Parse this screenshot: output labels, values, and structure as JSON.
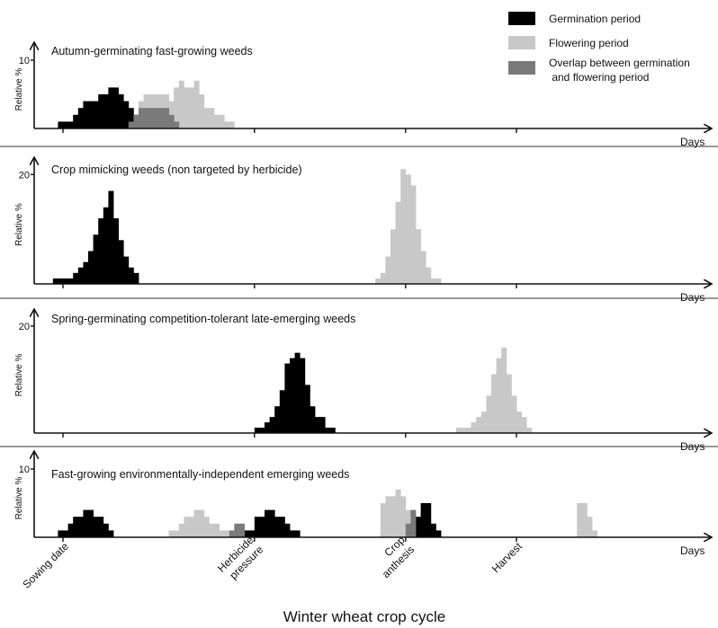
{
  "colors": {
    "germination": "#000000",
    "flowering": "#c8c8c8",
    "overlap": "#7a7a7a"
  },
  "legend": [
    {
      "label": "Germination period",
      "color": "#000000"
    },
    {
      "label": "Flowering period",
      "color": "#c8c8c8"
    },
    {
      "label": "Overlap between germination\n and flowering period",
      "color": "#7a7a7a"
    }
  ],
  "chart_data": {
    "type": "bar",
    "xlabel": "Winter  wheat crop cycle",
    "x_axis_label": "Days",
    "y_axis_label": "Relative %",
    "x_categories": [
      "Sowing date",
      "Herbicide pressure",
      "Crop anthesis",
      "Harvest"
    ],
    "x_category_positions": [
      0,
      38,
      68,
      90
    ],
    "x_range": [
      -3,
      106
    ],
    "panels": [
      {
        "title": "Autumn-germinating fast-growing weeds",
        "ylim": [
          0,
          12.5
        ],
        "ytick": 10,
        "series": [
          {
            "name": "Germination period",
            "bins": [
              [
                -1,
                1
              ],
              [
                0,
                1
              ],
              [
                1,
                1
              ],
              [
                2,
                2
              ],
              [
                3,
                3
              ],
              [
                4,
                4
              ],
              [
                5,
                4
              ],
              [
                6,
                4
              ],
              [
                7,
                5
              ],
              [
                8,
                5
              ],
              [
                9,
                6
              ],
              [
                10,
                6
              ],
              [
                11,
                5
              ],
              [
                12,
                4
              ],
              [
                13,
                3
              ],
              [
                14,
                2
              ]
            ]
          },
          {
            "name": "Flowering period",
            "bins": [
              [
                15,
                4
              ],
              [
                16,
                5
              ],
              [
                17,
                5
              ],
              [
                18,
                5
              ],
              [
                19,
                5
              ],
              [
                20,
                5
              ],
              [
                21,
                4
              ],
              [
                22,
                6
              ],
              [
                23,
                7
              ],
              [
                24,
                6
              ],
              [
                25,
                6
              ],
              [
                26,
                7
              ],
              [
                27,
                5
              ],
              [
                28,
                3
              ],
              [
                29,
                3
              ],
              [
                30,
                2
              ],
              [
                31,
                2
              ],
              [
                32,
                1
              ],
              [
                33,
                1
              ]
            ]
          },
          {
            "name": "Overlap between germination and flowering period",
            "bins": [
              [
                13,
                1
              ],
              [
                14,
                2
              ],
              [
                15,
                3
              ],
              [
                16,
                3
              ],
              [
                17,
                3
              ],
              [
                18,
                3
              ],
              [
                19,
                3
              ],
              [
                20,
                3
              ],
              [
                21,
                2
              ],
              [
                22,
                1
              ]
            ]
          }
        ]
      },
      {
        "title": "Crop mimicking weeds (non targeted by herbicide)",
        "ylim": [
          0,
          23
        ],
        "ytick": 20,
        "series": [
          {
            "name": "Germination period",
            "bins": [
              [
                -2,
                1
              ],
              [
                -1,
                1
              ],
              [
                0,
                1
              ],
              [
                1,
                1
              ],
              [
                2,
                2
              ],
              [
                3,
                3
              ],
              [
                4,
                4
              ],
              [
                5,
                6
              ],
              [
                6,
                9
              ],
              [
                7,
                12
              ],
              [
                8,
                14
              ],
              [
                9,
                17
              ],
              [
                10,
                12
              ],
              [
                11,
                8
              ],
              [
                12,
                5
              ],
              [
                13,
                3
              ],
              [
                14,
                2
              ]
            ]
          },
          {
            "name": "Flowering period",
            "bins": [
              [
                62,
                1
              ],
              [
                63,
                2
              ],
              [
                64,
                5
              ],
              [
                65,
                10
              ],
              [
                66,
                15
              ],
              [
                67,
                21
              ],
              [
                68,
                20
              ],
              [
                69,
                18
              ],
              [
                70,
                10
              ],
              [
                71,
                6
              ],
              [
                72,
                3
              ],
              [
                73,
                1
              ],
              [
                74,
                1
              ]
            ]
          }
        ]
      },
      {
        "title": "Spring-germinating competition-tolerant late-emerging weeds",
        "ylim": [
          0,
          23
        ],
        "ytick": 20,
        "series": [
          {
            "name": "Germination period",
            "bins": [
              [
                38,
                1
              ],
              [
                39,
                1
              ],
              [
                40,
                2
              ],
              [
                41,
                3
              ],
              [
                42,
                5
              ],
              [
                43,
                8
              ],
              [
                44,
                13
              ],
              [
                45,
                14
              ],
              [
                46,
                15
              ],
              [
                47,
                14
              ],
              [
                48,
                9
              ],
              [
                49,
                5
              ],
              [
                50,
                3
              ],
              [
                51,
                3
              ],
              [
                52,
                1
              ],
              [
                53,
                1
              ]
            ]
          },
          {
            "name": "Flowering period",
            "bins": [
              [
                78,
                1
              ],
              [
                79,
                1
              ],
              [
                80,
                1
              ],
              [
                81,
                2
              ],
              [
                82,
                3
              ],
              [
                83,
                4
              ],
              [
                84,
                7
              ],
              [
                85,
                11
              ],
              [
                86,
                14
              ],
              [
                87,
                16
              ],
              [
                88,
                11
              ],
              [
                89,
                7
              ],
              [
                90,
                4
              ],
              [
                91,
                3
              ],
              [
                92,
                1
              ]
            ]
          }
        ]
      },
      {
        "title": "Fast-growing environmentally-independent emerging weeds",
        "ylim": [
          0,
          12.5
        ],
        "ytick": 10,
        "series": [
          {
            "name": "Germination period",
            "bins": [
              [
                -1,
                1
              ],
              [
                0,
                1
              ],
              [
                1,
                2
              ],
              [
                2,
                3
              ],
              [
                3,
                3
              ],
              [
                4,
                4
              ],
              [
                5,
                4
              ],
              [
                6,
                3
              ],
              [
                7,
                3
              ],
              [
                8,
                2
              ],
              [
                9,
                1
              ],
              [
                36,
                1
              ],
              [
                37,
                1
              ],
              [
                38,
                3
              ],
              [
                39,
                3
              ],
              [
                40,
                4
              ],
              [
                41,
                4
              ],
              [
                42,
                3
              ],
              [
                43,
                3
              ],
              [
                44,
                2
              ],
              [
                45,
                1
              ],
              [
                46,
                1
              ],
              [
                70,
                3
              ],
              [
                71,
                5
              ],
              [
                72,
                5
              ],
              [
                73,
                2
              ],
              [
                74,
                1
              ]
            ]
          },
          {
            "name": "Flowering period",
            "bins": [
              [
                21,
                1
              ],
              [
                22,
                1
              ],
              [
                23,
                2
              ],
              [
                24,
                3
              ],
              [
                25,
                3
              ],
              [
                26,
                4
              ],
              [
                27,
                4
              ],
              [
                28,
                3
              ],
              [
                29,
                2
              ],
              [
                30,
                2
              ],
              [
                31,
                1
              ],
              [
                32,
                1
              ],
              [
                63,
                5
              ],
              [
                64,
                6
              ],
              [
                65,
                6
              ],
              [
                66,
                7
              ],
              [
                67,
                6
              ],
              [
                68,
                4
              ],
              [
                69,
                3
              ],
              [
                102,
                5
              ],
              [
                103,
                5
              ],
              [
                104,
                3
              ],
              [
                105,
                1
              ]
            ]
          },
          {
            "name": "Overlap between germination and flowering period",
            "bins": [
              [
                33,
                1
              ],
              [
                34,
                2
              ],
              [
                35,
                2
              ],
              [
                68,
                2
              ],
              [
                69,
                4
              ]
            ]
          }
        ]
      }
    ]
  }
}
